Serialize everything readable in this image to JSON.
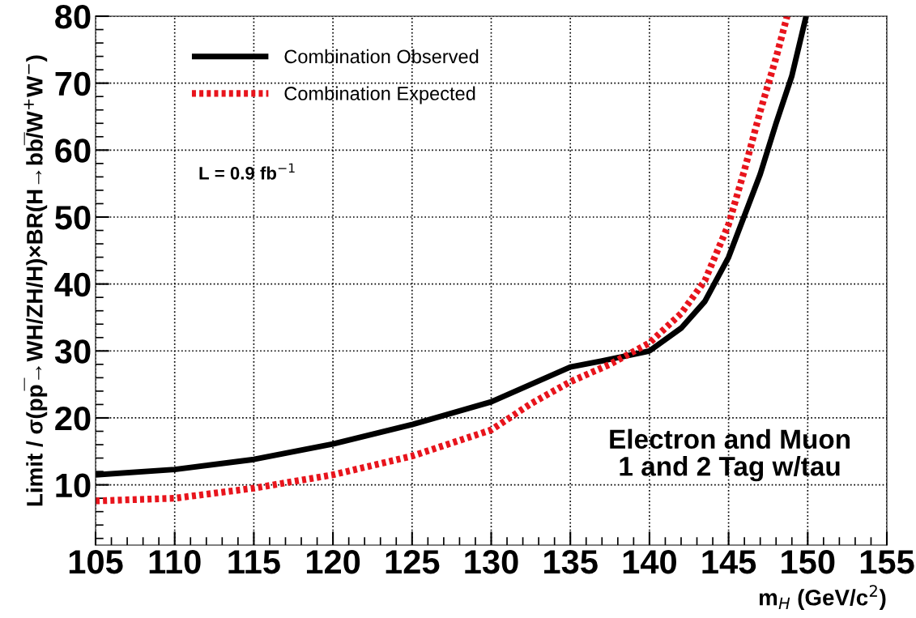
{
  "chart_data": {
    "type": "line",
    "xlabel": "m$_{H}$ (GeV/c$^{2}$)",
    "ylabel": "Limit / σ(pp̅→WH/ZH/H)×BR(H→bb̅/W$^{+}$W$^{−}$)",
    "series": [
      {
        "name": "Combination Observed",
        "color": "#000000",
        "line_style": "solid",
        "x": [
          105,
          110,
          115,
          120,
          125,
          130,
          135,
          137,
          140,
          142,
          143.5,
          145,
          146,
          147,
          148,
          149,
          149.9
        ],
        "values": [
          11.5,
          12.3,
          13.8,
          16.1,
          19.0,
          22.4,
          27.6,
          28.5,
          30.0,
          33.4,
          37.4,
          44.0,
          50.2,
          56.4,
          64.0,
          71.1,
          80
        ]
      },
      {
        "name": "Combination Expected",
        "color": "#e8141c",
        "line_style": "dotted",
        "x": [
          105,
          110,
          115,
          120,
          125,
          130,
          132.5,
          135,
          137.5,
          140,
          142,
          143.5,
          145,
          146,
          147,
          148,
          148.7
        ],
        "values": [
          7.6,
          8.0,
          9.5,
          11.5,
          14.3,
          18.2,
          22.1,
          25.4,
          28.0,
          31.2,
          35.6,
          40.5,
          48.9,
          57.0,
          65.8,
          73.8,
          80
        ]
      }
    ],
    "xlim": [
      105,
      155
    ],
    "xticks": [
      105,
      110,
      115,
      120,
      125,
      130,
      135,
      140,
      145,
      150,
      155
    ],
    "ylim": [
      1,
      80
    ],
    "yticks": [
      10,
      20,
      30,
      40,
      50,
      60,
      70,
      80
    ],
    "grid": true,
    "legend": "top left",
    "marker": "none",
    "annotations": [
      {
        "text": "L = 0.9 fb$^{−1}$"
      },
      {
        "text": "Electron and Muon\n1 and 2 Tag w/tau"
      }
    ]
  }
}
